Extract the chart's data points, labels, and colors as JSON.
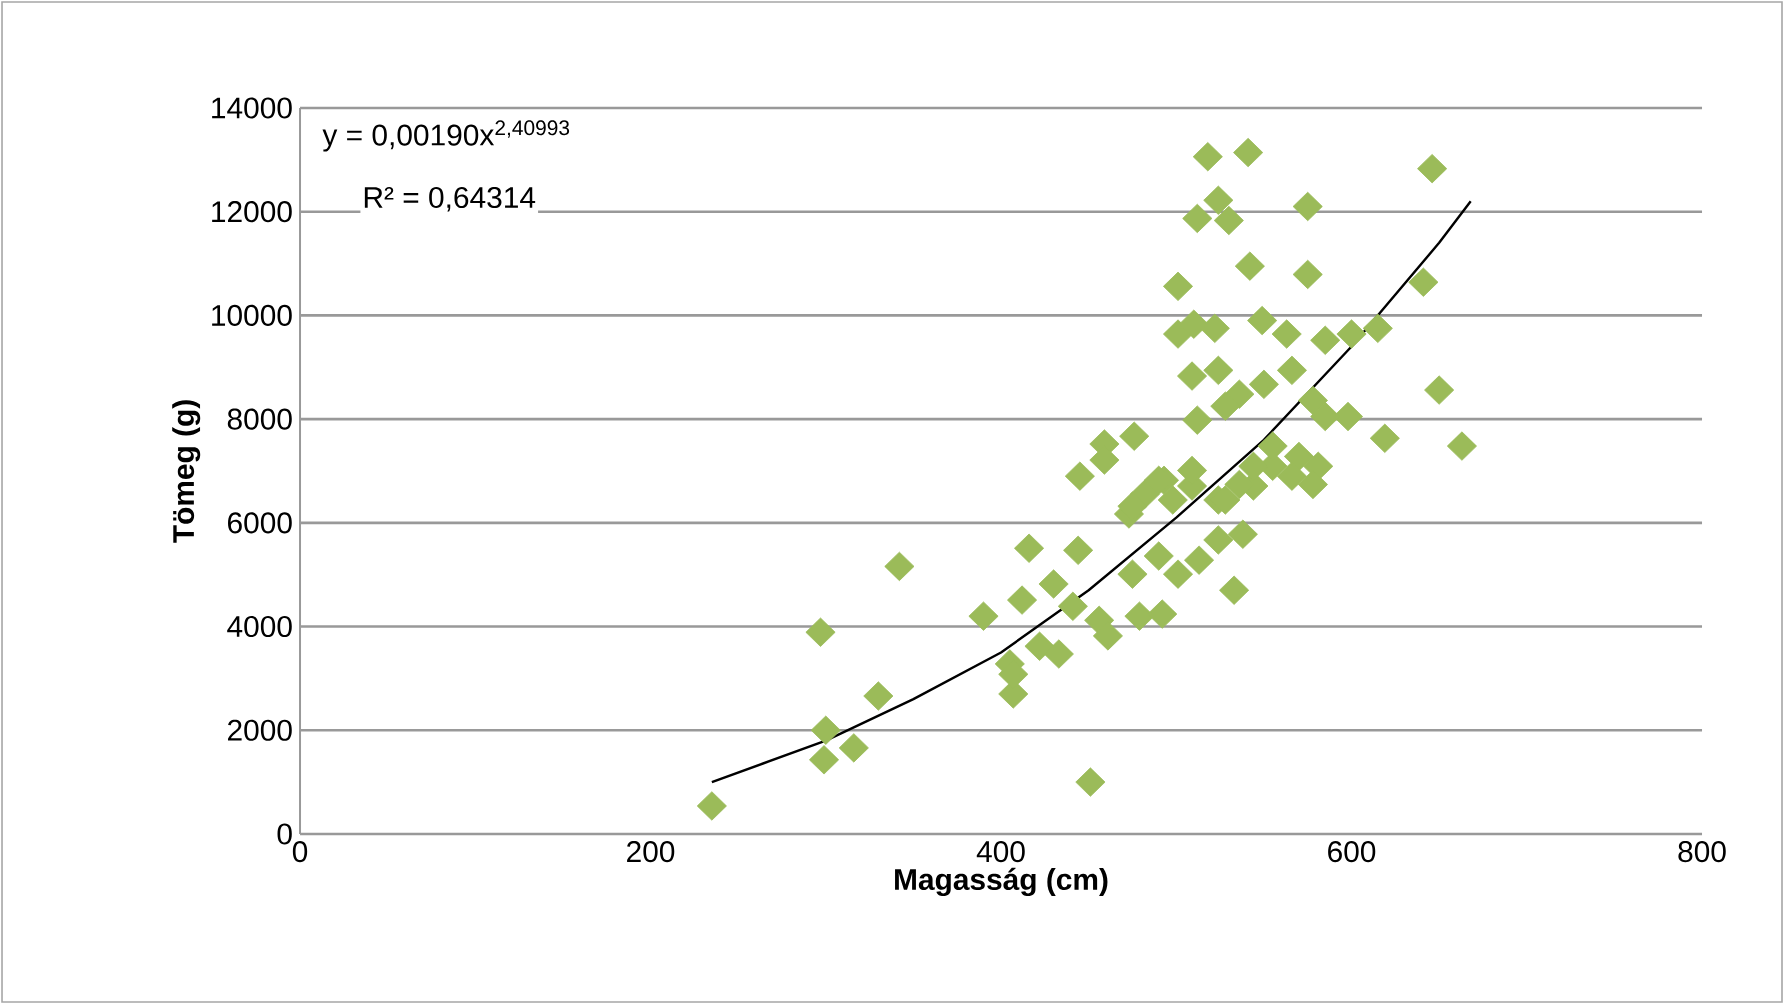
{
  "chart_data": {
    "type": "scatter",
    "xlabel": "Magasság (cm)",
    "ylabel": "Tömeg (g)",
    "xlim": [
      0,
      800
    ],
    "xticks": [
      0,
      200,
      400,
      600,
      800
    ],
    "ylim": [
      0,
      14000
    ],
    "yticks": [
      0,
      2000,
      4000,
      6000,
      8000,
      10000,
      12000,
      14000
    ],
    "grid": "y",
    "annotations": [
      "y = 0,00190x$^{2,40993}$",
      "R² = 0,64314"
    ],
    "series": [
      {
        "marker": "diamond",
        "color": "#9bbb59",
        "x": [
          235,
          297,
          300,
          299,
          316,
          330,
          342,
          451,
          405,
          407,
          407,
          412,
          390,
          416,
          444,
          430,
          441,
          456,
          461,
          422,
          433,
          479,
          492,
          533,
          475,
          490,
          501,
          513,
          524,
          538,
          473,
          482,
          493,
          509,
          524,
          544,
          555,
          518,
          541,
          646,
          524,
          512,
          530,
          575,
          542,
          575,
          641,
          501,
          501,
          510,
          522,
          549,
          563,
          585,
          600,
          615,
          650,
          663,
          509,
          524,
          566,
          536,
          550,
          528,
          578,
          598,
          585,
          619,
          512,
          476,
          459,
          445,
          459,
          490,
          509,
          555,
          570,
          581,
          566,
          578,
          544,
          536,
          475,
          498,
          528
        ],
        "values": [
          540,
          3890,
          2000,
          1430,
          1660,
          2660,
          5160,
          1000,
          3280,
          2700,
          3080,
          4510,
          4200,
          5510,
          5470,
          4820,
          4390,
          4120,
          3820,
          3620,
          3470,
          4200,
          4240,
          4700,
          5010,
          5360,
          5010,
          5280,
          5670,
          5780,
          6170,
          6550,
          6820,
          6710,
          6440,
          6710,
          7090,
          13060,
          13140,
          12830,
          12220,
          11870,
          11830,
          12100,
          10950,
          10790,
          10640,
          10560,
          9640,
          9830,
          9750,
          9900,
          9640,
          9520,
          9640,
          9750,
          8560,
          7480,
          8830,
          8940,
          8940,
          8480,
          8670,
          8250,
          8360,
          8050,
          8050,
          7630,
          7980,
          7670,
          7520,
          6900,
          7210,
          6820,
          7010,
          7480,
          7280,
          7090,
          6900,
          6740,
          7090,
          6740,
          6320,
          6440,
          6440
        ]
      },
      {
        "type": "line",
        "marker": "none",
        "line_style": "solid",
        "color": "#000000",
        "x": [
          235,
          300,
          350,
          400,
          450,
          500,
          550,
          600,
          650,
          668
        ],
        "values": [
          1000,
          1800,
          2600,
          3500,
          4700,
          6100,
          7600,
          9400,
          11400,
          12200
        ]
      }
    ]
  }
}
